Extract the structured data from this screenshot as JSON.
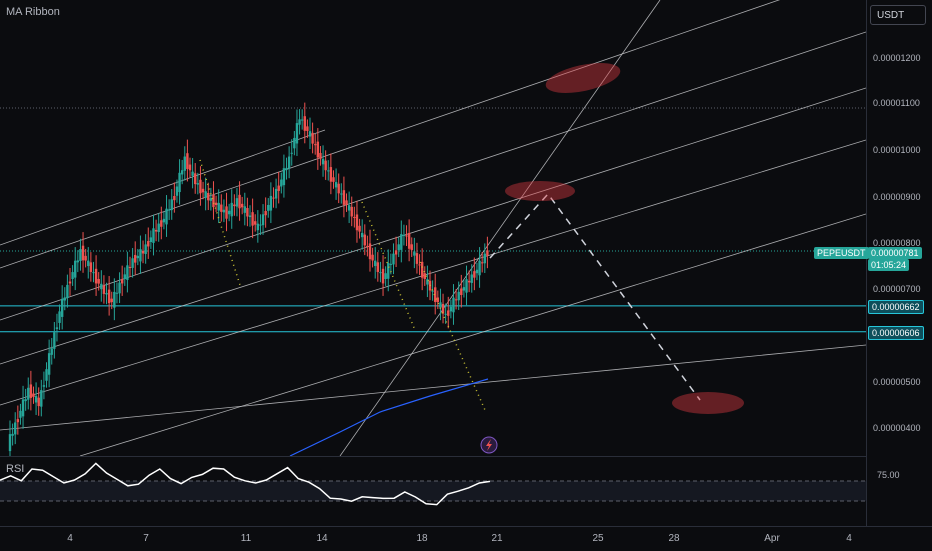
{
  "indicator_title": "MA Ribbon",
  "rsi_title": "RSI",
  "currency_button": "USDT",
  "price_scale": {
    "ticks": [
      "0.00001200",
      "0.00001100",
      "0.00001000",
      "0.00000900",
      "0.00000800",
      "0.00000700",
      "0.00000500",
      "0.00000400"
    ],
    "symbol_tag": {
      "label": "PEPEUSDT",
      "price": "0.00000781",
      "countdown": "01:05:24"
    },
    "level_tags": [
      "0.00000662",
      "0.00000606"
    ],
    "rsi_tick": "75.00"
  },
  "time_axis": {
    "ticks": [
      "4",
      "7",
      "11",
      "14",
      "18",
      "21",
      "25",
      "28",
      "Apr",
      "4"
    ]
  },
  "colors": {
    "up": "#26a69a",
    "down": "#ef5350",
    "highlight": "#e03b42",
    "level": "#26c6da",
    "ma": "#2962ff"
  },
  "icons": [
    "lightning-icon"
  ],
  "chart_data": {
    "type": "candlestick",
    "symbol": "PEPEUSDT",
    "ylim": [
      3.5e-06,
      1.29e-05
    ],
    "current_price": 7.81e-06,
    "horizontal_levels": [
      6.62e-06,
      6.06e-06
    ],
    "price_path": [
      3.6e-06,
      4.2e-06,
      4.8e-06,
      4.5e-06,
      5.5e-06,
      6.5e-06,
      7.2e-06,
      7.8e-06,
      7.4e-06,
      7e-06,
      6.7e-06,
      7.2e-06,
      7.6e-06,
      7.8e-06,
      8.2e-06,
      8.5e-06,
      9e-06,
      9.8e-06,
      9.3e-06,
      9e-06,
      8.8e-06,
      8.6e-06,
      8.9e-06,
      8.6e-06,
      8.3e-06,
      8.8e-06,
      9.2e-06,
      9.8e-06,
      1.07e-05,
      1.03e-05,
      9.8e-06,
      9.4e-06,
      9e-06,
      8.6e-06,
      8.1e-06,
      7.6e-06,
      7.2e-06,
      7.7e-06,
      8.2e-06,
      7.7e-06,
      7.2e-06,
      6.8e-06,
      6.4e-06,
      6.8e-06,
      7.1e-06,
      7.4e-06,
      7.8e-06
    ],
    "projection": [
      [
        9.2e-06,
        0
      ],
      [
        9.2e-06,
        0
      ],
      [
        4.6e-06,
        0
      ]
    ],
    "rsi_series": [
      62,
      68,
      63,
      70,
      72,
      66,
      60,
      65,
      68,
      74,
      70,
      64,
      58,
      62,
      67,
      70,
      66,
      61,
      64,
      69,
      72,
      70,
      67,
      63,
      60,
      65,
      68,
      71,
      66,
      62,
      56,
      52,
      50,
      47,
      53,
      51,
      49,
      52,
      55,
      50,
      48,
      46,
      52,
      57,
      58,
      60,
      64
    ]
  }
}
